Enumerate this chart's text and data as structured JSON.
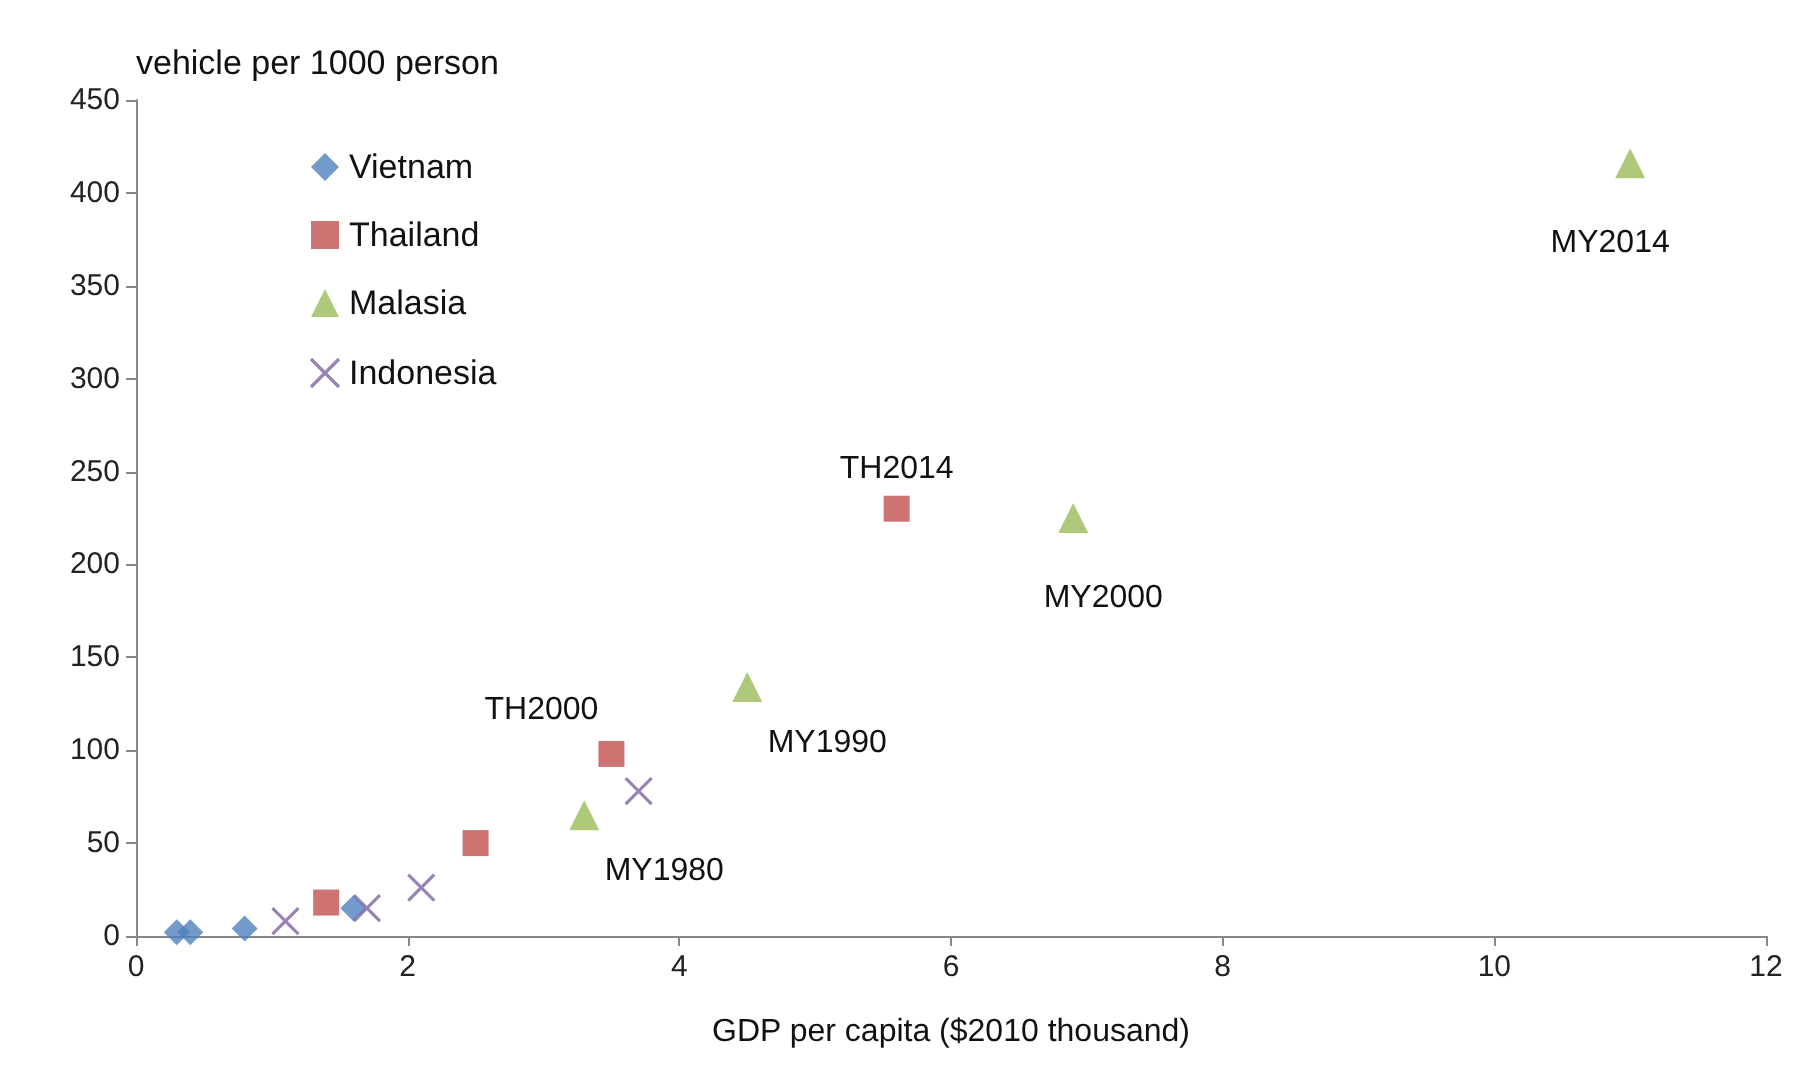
{
  "chart_data": {
    "type": "scatter",
    "xlabel": "GDP per capita ($2010 thousand)",
    "ylabel": "vehicle per 1000 person",
    "xlim": [
      0,
      12
    ],
    "xticks": [
      0,
      2,
      4,
      6,
      8,
      10,
      12
    ],
    "ylim": [
      0,
      450
    ],
    "yticks": [
      0,
      50,
      100,
      150,
      200,
      250,
      300,
      350,
      400,
      450
    ],
    "grid": false,
    "legend": "top left",
    "series": [
      {
        "name": "Vietnam",
        "color": "#4f81bd",
        "marker": "diamond",
        "x": [
          0.3,
          0.4,
          0.8,
          1.6
        ],
        "values": [
          2,
          2,
          4,
          15
        ]
      },
      {
        "name": "Thailand",
        "color": "#c0504d",
        "marker": "square",
        "x": [
          1.4,
          2.5,
          3.5,
          5.6
        ],
        "values": [
          18,
          50,
          98,
          230
        ]
      },
      {
        "name": "Malasia",
        "color": "#9bbb59",
        "marker": "triangle",
        "x": [
          3.3,
          4.5,
          6.9,
          11.0
        ],
        "values": [
          65,
          134,
          225,
          416
        ]
      },
      {
        "name": "Indonesia",
        "color": "#8064a2",
        "marker": "cross",
        "x": [
          1.1,
          1.7,
          2.1,
          3.7
        ],
        "values": [
          8,
          15,
          26,
          78
        ]
      }
    ],
    "annotations": [
      {
        "text": "TH2000",
        "x": 3.5,
        "y": 98
      },
      {
        "text": "TH2014",
        "x": 5.6,
        "y": 230
      },
      {
        "text": "MY1980",
        "x": 3.3,
        "y": 65
      },
      {
        "text": "MY1990",
        "x": 4.5,
        "y": 134
      },
      {
        "text": "MY2000",
        "x": 6.9,
        "y": 225
      },
      {
        "text": "MY2014",
        "x": 11.0,
        "y": 416
      }
    ]
  }
}
